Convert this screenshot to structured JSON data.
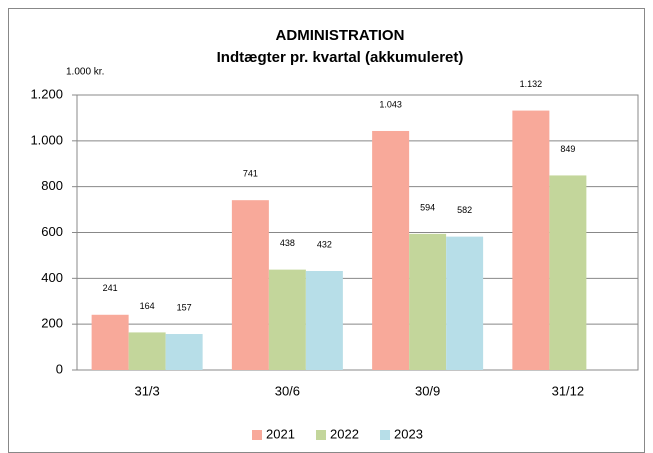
{
  "chart_data": {
    "type": "bar",
    "title": "ADMINISTRATION",
    "subtitle": "Indtægter pr. kvartal (akkumuleret)",
    "y_label": "1.000 kr.",
    "categories": [
      "31/3",
      "30/6",
      "30/9",
      "31/12"
    ],
    "series": [
      {
        "name": "2021",
        "color": "#f8a99a",
        "values": [
          241,
          741,
          1043,
          1132
        ],
        "value_labels": [
          "241",
          "741",
          "1.043",
          "1.132"
        ]
      },
      {
        "name": "2022",
        "color": "#c3d69b",
        "values": [
          164,
          438,
          594,
          849
        ]
      },
      {
        "name": "2023",
        "color": "#b7dee8",
        "values": [
          157,
          432,
          582,
          null
        ]
      }
    ],
    "ylim": [
      0,
      1200
    ],
    "yticks": [
      0,
      200,
      400,
      600,
      800,
      {
        "value": 1000,
        "label": "1.000"
      },
      {
        "value": 1200,
        "label": "1.200"
      }
    ],
    "grid": true,
    "legend": "bottom"
  }
}
